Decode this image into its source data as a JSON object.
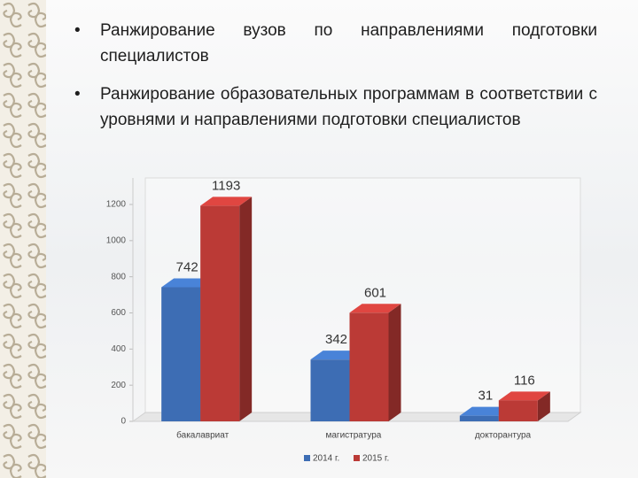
{
  "bullets": [
    "Ранжирование вузов по направлениями подготовки специалистов",
    "Ранжирование образовательных программам в соответствии с уровнями и направлениями подготовки специалистов"
  ],
  "chart_data": {
    "type": "bar",
    "categories": [
      "бакалавриат",
      "магистратура",
      "докторантура"
    ],
    "series": [
      {
        "name": "2014 г.",
        "color": "#3d6db4",
        "values": [
          742,
          342,
          31
        ]
      },
      {
        "name": "2015 г.",
        "color": "#bb3a36",
        "values": [
          1193,
          601,
          116
        ]
      }
    ],
    "ylim": [
      0,
      1200
    ],
    "yticks": [
      0,
      200,
      400,
      600,
      800,
      1000,
      1200
    ],
    "grid": false
  }
}
